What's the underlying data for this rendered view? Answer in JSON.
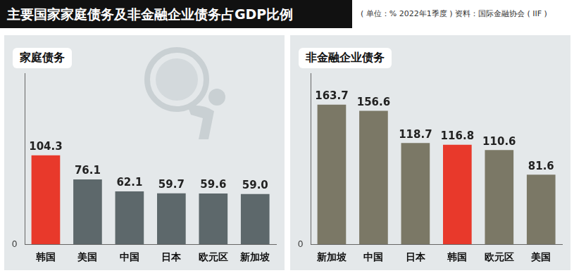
{
  "title": "主要国家家庭债务及非金融企业债务占GDP比例",
  "subtitle": "( 单位：% 2022年1季度 )",
  "source": "资料：国际金融协会 ( IIF )",
  "chart_data": [
    {
      "type": "bar",
      "title": "家庭债务",
      "categories": [
        "韩国",
        "美国",
        "中国",
        "日本",
        "欧元区",
        "新加坡"
      ],
      "values": [
        104.3,
        76.1,
        62.1,
        59.7,
        59.6,
        59.0
      ],
      "value_labels": [
        "104.3",
        "76.1",
        "62.1",
        "59.7",
        "59.6",
        "59.0"
      ],
      "colors": [
        "#e8392b",
        "#5d686b",
        "#5d686b",
        "#5d686b",
        "#5d686b",
        "#5d686b"
      ],
      "ylim": [
        0,
        200
      ],
      "yticks": [
        0
      ],
      "grid": false,
      "data_labels": true
    },
    {
      "type": "bar",
      "title": "非金融企业债务",
      "categories": [
        "新加坡",
        "中国",
        "日本",
        "韩国",
        "欧元区",
        "美国"
      ],
      "values": [
        163.7,
        156.6,
        118.7,
        116.8,
        110.6,
        81.6
      ],
      "value_labels": [
        "163.7",
        "156.6",
        "118.7",
        "116.8",
        "110.6",
        "81.6"
      ],
      "colors": [
        "#7b7866",
        "#7b7866",
        "#7b7866",
        "#e8392b",
        "#7b7866",
        "#7b7866"
      ],
      "ylim": [
        0,
        200
      ],
      "yticks": [
        0
      ],
      "grid": false,
      "data_labels": true
    }
  ]
}
